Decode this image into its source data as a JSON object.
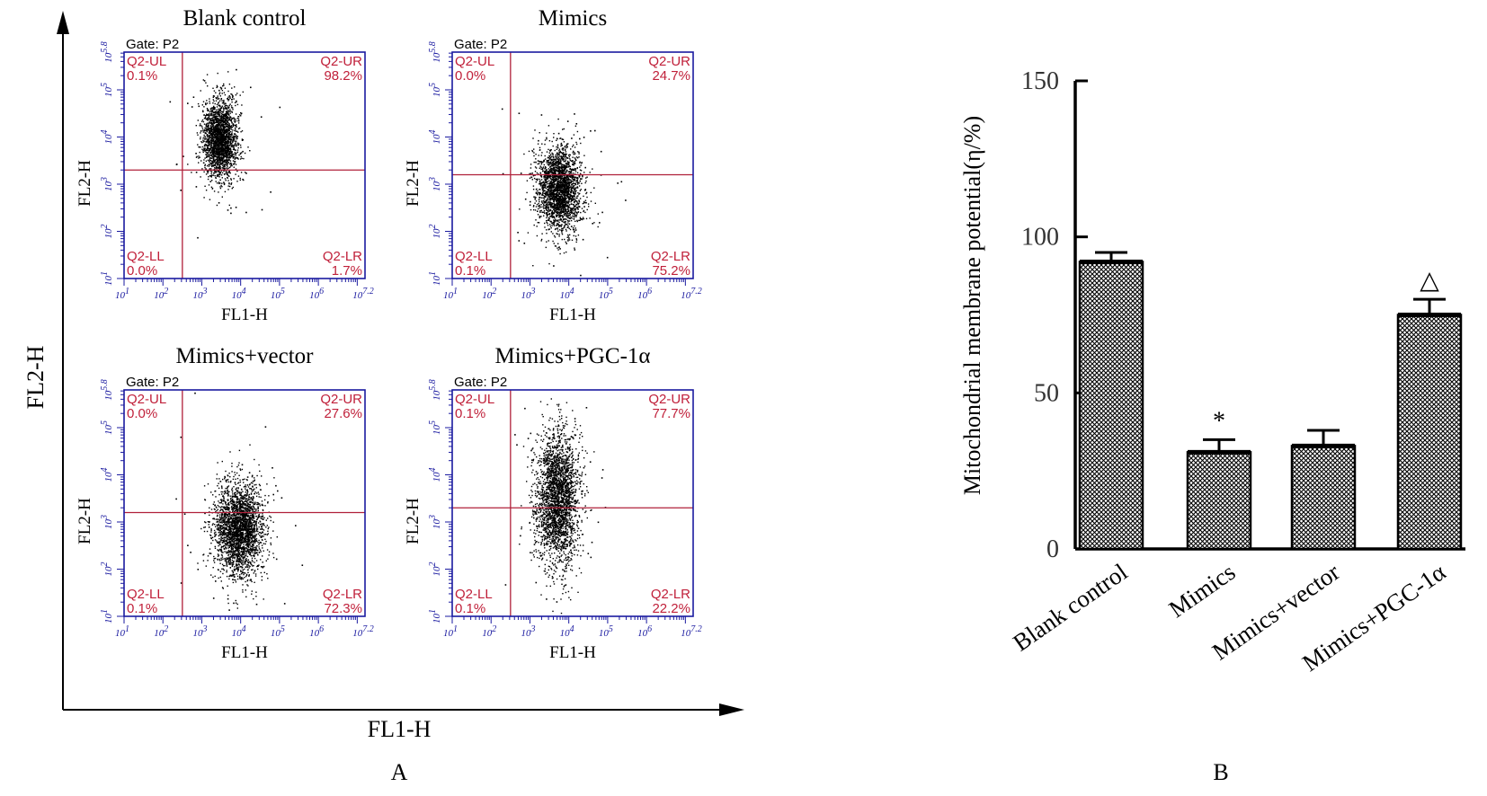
{
  "panel_a": {
    "label": "A",
    "outer_x_label": "FL1-H",
    "outer_y_label": "FL2-H",
    "plots": [
      {
        "title": "Blank control",
        "gate": "Gate: P2",
        "x_label": "FL1-H",
        "y_label": "FL2-H",
        "quadrants": {
          "UL": {
            "name": "Q2-UL",
            "pct": "0.1%"
          },
          "UR": {
            "name": "Q2-UR",
            "pct": "98.2%"
          },
          "LL": {
            "name": "Q2-LL",
            "pct": "0.0%"
          },
          "LR": {
            "name": "Q2-LR",
            "pct": "1.7%"
          }
        },
        "gate_x": 2.5,
        "gate_y": 3.3,
        "cloud": {
          "cx": 3.45,
          "cy": 3.95,
          "sx": 0.22,
          "sy": 0.42,
          "n": 2200
        }
      },
      {
        "title": "Mimics",
        "gate": "Gate: P2",
        "x_label": "FL1-H",
        "y_label": "FL2-H",
        "quadrants": {
          "UL": {
            "name": "Q2-UL",
            "pct": "0.0%"
          },
          "UR": {
            "name": "Q2-UR",
            "pct": "24.7%"
          },
          "LL": {
            "name": "Q2-LL",
            "pct": "0.1%"
          },
          "LR": {
            "name": "Q2-LR",
            "pct": "75.2%"
          }
        },
        "gate_x": 2.5,
        "gate_y": 3.2,
        "cloud": {
          "cx": 3.75,
          "cy": 2.9,
          "sx": 0.28,
          "sy": 0.45,
          "n": 2400
        }
      },
      {
        "title": "Mimics+vector",
        "gate": "Gate: P2",
        "x_label": "FL1-H",
        "y_label": "FL2-H",
        "quadrants": {
          "UL": {
            "name": "Q2-UL",
            "pct": "0.0%"
          },
          "UR": {
            "name": "Q2-UR",
            "pct": "27.6%"
          },
          "LL": {
            "name": "Q2-LL",
            "pct": "0.1%"
          },
          "LR": {
            "name": "Q2-LR",
            "pct": "72.3%"
          }
        },
        "gate_x": 2.5,
        "gate_y": 3.2,
        "cloud": {
          "cx": 3.95,
          "cy": 2.85,
          "sx": 0.32,
          "sy": 0.5,
          "n": 2600
        }
      },
      {
        "title": "Mimics+PGC-1α",
        "gate": "Gate: P2",
        "x_label": "FL1-H",
        "y_label": "FL2-H",
        "quadrants": {
          "UL": {
            "name": "Q2-UL",
            "pct": "0.1%"
          },
          "UR": {
            "name": "Q2-UR",
            "pct": "77.7%"
          },
          "LL": {
            "name": "Q2-LL",
            "pct": "0.1%"
          },
          "LR": {
            "name": "Q2-LR",
            "pct": "22.2%"
          }
        },
        "gate_x": 2.5,
        "gate_y": 3.3,
        "cloud": {
          "cx": 3.7,
          "cy": 3.5,
          "sx": 0.28,
          "sy": 0.7,
          "n": 2600
        }
      }
    ],
    "x_ticks": [
      "10^1",
      "10^2",
      "10^3",
      "10^4",
      "10^5",
      "10^6",
      "10^7.2"
    ],
    "y_ticks": [
      "10^1",
      "10^2",
      "10^3",
      "10^4",
      "10^5",
      "10^5.8"
    ]
  },
  "chart_data": {
    "type": "bar",
    "label": "B",
    "title": "",
    "xlabel": "",
    "ylabel": "Mitochondrial membrane potential(η/%)",
    "categories": [
      "Blank control",
      "Mimics",
      "Mimics+vector",
      "Mimics+PGC-1α"
    ],
    "values": [
      92,
      31,
      33,
      75
    ],
    "errors": [
      3,
      4,
      5,
      5
    ],
    "annotations": [
      "",
      "*",
      "",
      "△"
    ],
    "ylim": [
      0,
      150
    ],
    "yticks": [
      0,
      50,
      100,
      150
    ],
    "grid": false,
    "legend": "none",
    "bar_pattern": "crosshatch"
  },
  "colors": {
    "frame": "#1a1aa0",
    "gate": "#b0203a",
    "quadrant_text": "#c0203a",
    "dots": "#000000"
  }
}
